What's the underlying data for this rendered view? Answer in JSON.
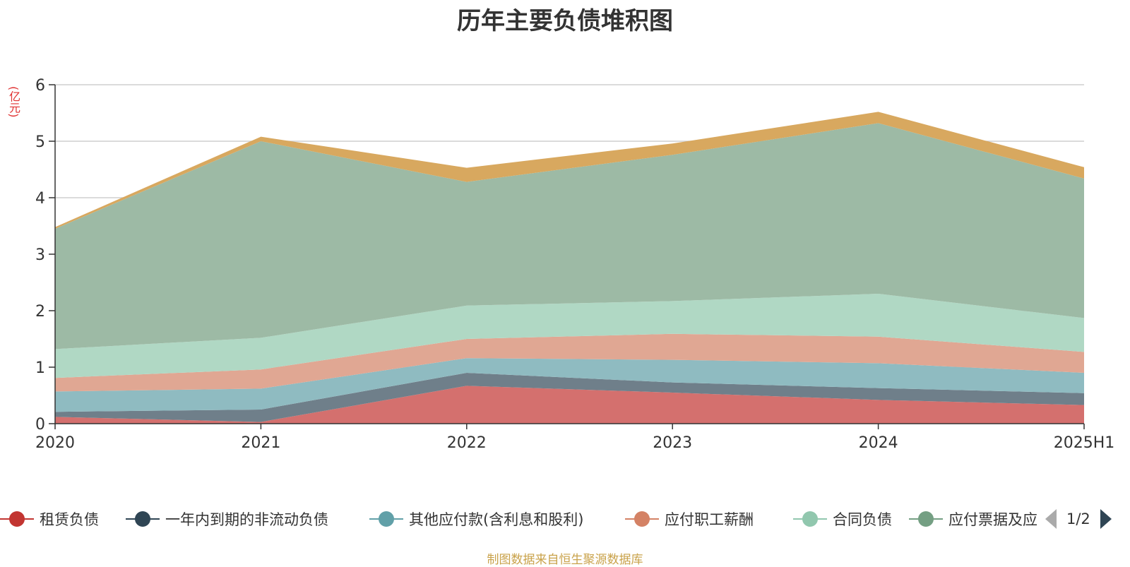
{
  "title": "历年主要负债堆积图",
  "unit_label": "(亿元)",
  "source": "制图数据来自恒生聚源数据库",
  "chart_data": {
    "type": "area",
    "stacked": true,
    "title": "历年主要负债堆积图",
    "ylabel": "(亿元)",
    "ylim": [
      0,
      6
    ],
    "yticks": [
      0,
      1,
      2,
      3,
      4,
      5,
      6
    ],
    "grid": true,
    "legend_position": "bottom",
    "categories": [
      "2020",
      "2021",
      "2022",
      "2023",
      "2024",
      "2025H1"
    ],
    "series": [
      {
        "name": "租赁负债",
        "color": "#d4706e",
        "legend_color": "#c23531",
        "values": [
          0.12,
          0.03,
          0.67,
          0.55,
          0.42,
          0.33
        ]
      },
      {
        "name": "一年内到期的非流动负债",
        "color": "#6f7f8a",
        "legend_color": "#2f4554",
        "values": [
          0.09,
          0.22,
          0.23,
          0.18,
          0.21,
          0.21
        ]
      },
      {
        "name": "其他应付款(含利息和股利)",
        "color": "#8fbbc1",
        "legend_color": "#61a0a8",
        "values": [
          0.36,
          0.37,
          0.26,
          0.4,
          0.44,
          0.36
        ]
      },
      {
        "name": "应付职工薪酬",
        "color": "#e0a793",
        "legend_color": "#d48265",
        "values": [
          0.24,
          0.34,
          0.34,
          0.46,
          0.47,
          0.37
        ]
      },
      {
        "name": "合同负债",
        "color": "#b0d8c4",
        "legend_color": "#91c7ae",
        "values": [
          0.51,
          0.56,
          0.59,
          0.58,
          0.76,
          0.6
        ]
      },
      {
        "name": "应付票据及应付账款",
        "legend_text": "应付票据及应",
        "color": "#9dbaa5",
        "legend_color": "#749f83",
        "values": [
          2.13,
          3.48,
          2.19,
          2.59,
          3.02,
          2.47
        ]
      },
      {
        "name": "",
        "color": "#d8a85f",
        "legend_color": "#ca8622",
        "values": [
          0.03,
          0.08,
          0.25,
          0.2,
          0.2,
          0.2
        ]
      }
    ]
  },
  "legend": {
    "page_text": "1/2"
  }
}
